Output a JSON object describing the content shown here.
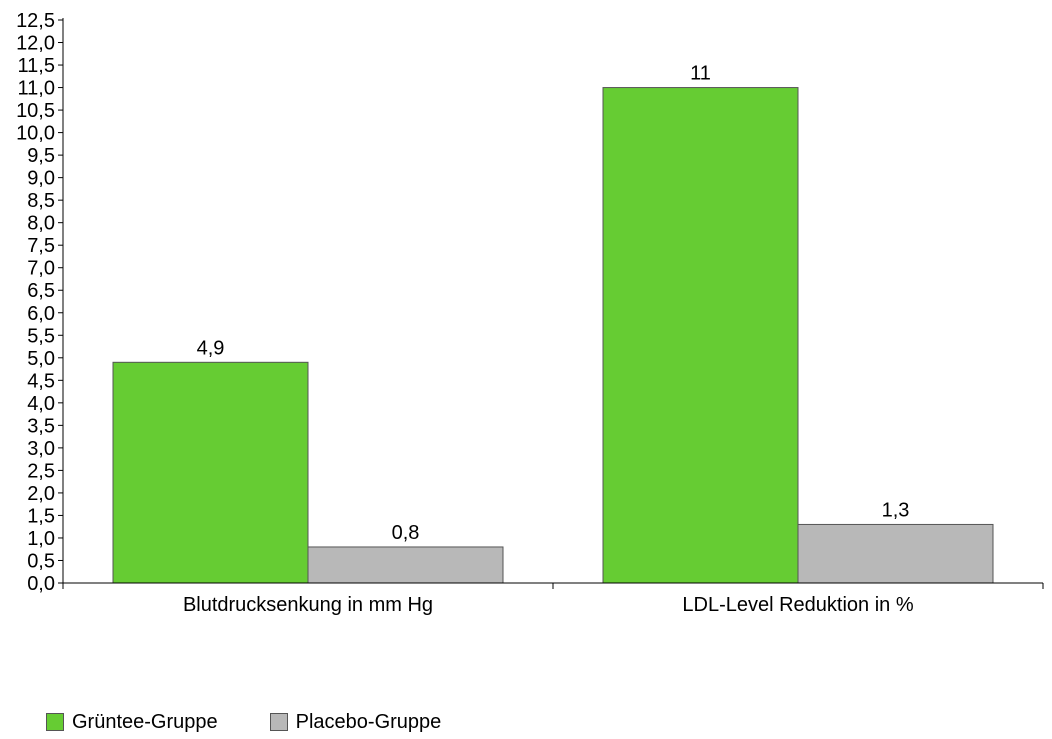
{
  "chart_data": {
    "type": "bar",
    "categories": [
      "Blutdrucksenkung in mm Hg",
      "LDL-Level Reduktion in %"
    ],
    "series": [
      {
        "name": "Grüntee-Gruppe",
        "values": [
          4.9,
          11
        ],
        "labels": [
          "4,9",
          "11"
        ],
        "color": "#66cc33"
      },
      {
        "name": "Placebo-Gruppe",
        "values": [
          0.8,
          1.3
        ],
        "labels": [
          "0,8",
          "1,3"
        ],
        "color": "#b8b8b8"
      }
    ],
    "ylim": [
      0,
      12.5
    ],
    "ytick_step": 0.5,
    "yticks": [
      "0,0",
      "0,5",
      "1,0",
      "1,5",
      "2,0",
      "2,5",
      "3,0",
      "3,5",
      "4,0",
      "4,5",
      "5,0",
      "5,5",
      "6,0",
      "6,5",
      "7,0",
      "7,5",
      "8,0",
      "8,5",
      "9,0",
      "9,5",
      "10,0",
      "10,5",
      "11,0",
      "11,5",
      "12,0",
      "12,5"
    ],
    "grid": false,
    "legend_position": "bottom-left",
    "title": "",
    "xlabel": "",
    "ylabel": ""
  }
}
